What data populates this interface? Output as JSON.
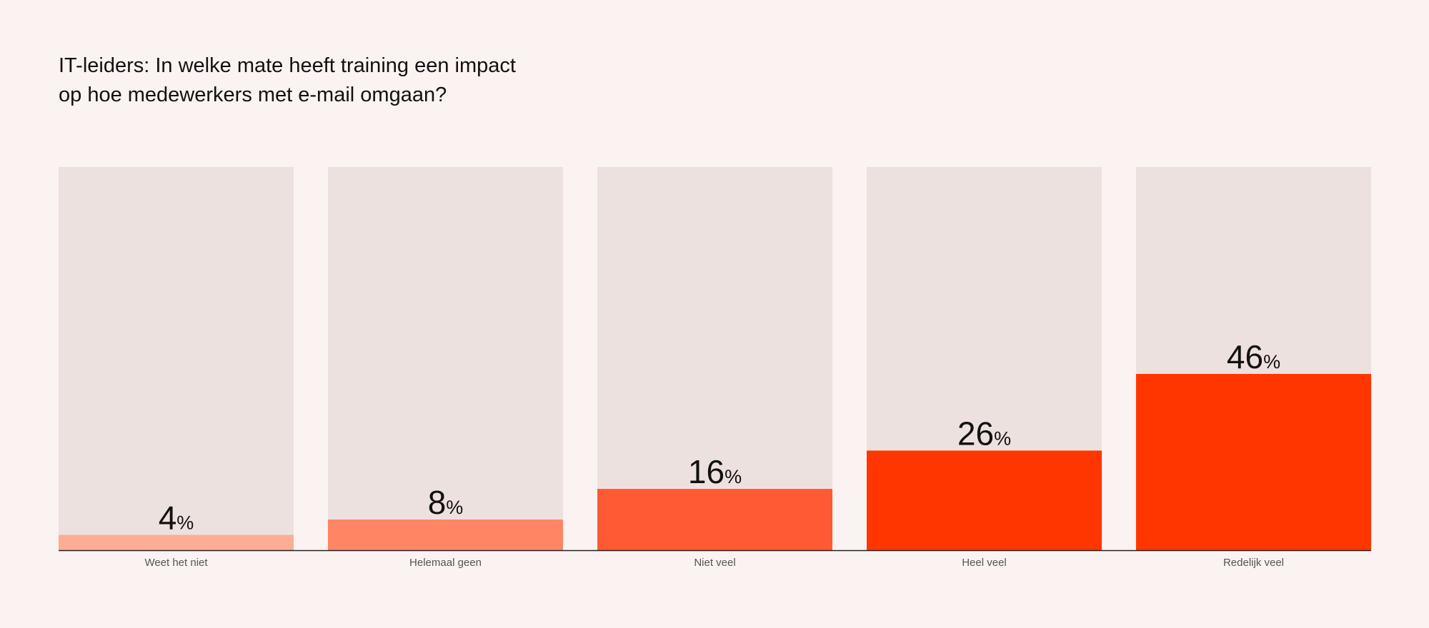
{
  "chart_data": {
    "type": "bar",
    "title_lines": [
      "IT-leiders: In welke mate heeft training een impact",
      "op hoe medewerkers met e-mail omgaan?"
    ],
    "categories": [
      "Weet het niet",
      "Helemaal geen",
      "Niet veel",
      "Heel veel",
      "Redelijk veel"
    ],
    "values": [
      4,
      8,
      16,
      26,
      46
    ],
    "unit": "%",
    "ylim": [
      0,
      100
    ],
    "colors": [
      "#fcad94",
      "#ff8565",
      "#ff5a33",
      "#ff3600",
      "#ff3600"
    ],
    "background_bar_color": "#ede1e0",
    "grid": false,
    "legend": "none"
  }
}
